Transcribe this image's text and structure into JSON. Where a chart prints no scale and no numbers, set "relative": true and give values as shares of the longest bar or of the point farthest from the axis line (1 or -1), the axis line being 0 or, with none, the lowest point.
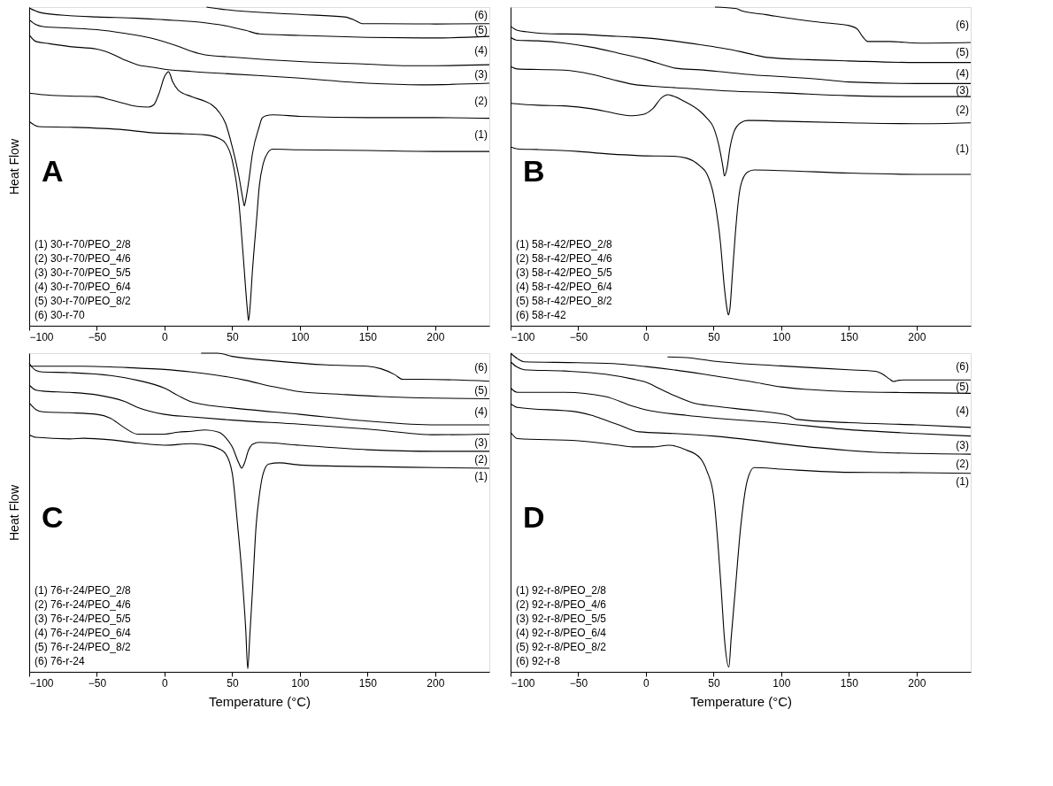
{
  "chart_data": [
    {
      "type": "line",
      "title": "A",
      "ylabel": "Heat Flow",
      "relative": true,
      "tick_labels": "x",
      "legend": false,
      "grid": false,
      "line_style": "solid",
      "marker": "none",
      "xlim": [
        -100,
        240
      ],
      "xticks": [
        -100,
        -50,
        0,
        50,
        100,
        150,
        200
      ],
      "annotations": [
        "(1) 30-r-70/PEO_2/8",
        "(2) 30-r-70/PEO_4/6",
        "(3) 30-r-70/PEO_5/5",
        "(4) 30-r-70/PEO_6/4",
        "(5) 30-r-70/PEO_8/2",
        "(6) 30-r-70"
      ],
      "series": [
        {
          "name": "(6)",
          "color": "#000000",
          "x": [
            31,
            41,
            100,
            133,
            140,
            146,
            160,
            200,
            240
          ],
          "values": [
            1.0,
            0.994,
            0.977,
            0.969,
            0.96,
            0.948,
            0.948,
            0.947,
            0.948
          ]
        },
        {
          "name": "(5)",
          "color": "#000000",
          "x": [
            -100,
            -92,
            -70,
            -50,
            -20,
            0,
            20,
            40,
            50,
            60,
            70,
            100,
            150,
            200,
            240
          ],
          "values": [
            0.997,
            0.983,
            0.973,
            0.969,
            0.965,
            0.96,
            0.955,
            0.945,
            0.937,
            0.927,
            0.916,
            0.911,
            0.905,
            0.903,
            0.908
          ]
        },
        {
          "name": "(4)",
          "color": "#000000",
          "x": [
            -100,
            -95,
            -90,
            -70,
            -50,
            -30,
            -10,
            10,
            20,
            30,
            50,
            100,
            150,
            180,
            200,
            240
          ],
          "values": [
            0.96,
            0.945,
            0.939,
            0.934,
            0.929,
            0.918,
            0.903,
            0.877,
            0.861,
            0.85,
            0.843,
            0.829,
            0.821,
            0.816,
            0.816,
            0.819
          ]
        },
        {
          "name": "(3)",
          "color": "#000000",
          "x": [
            -100,
            -95,
            -85,
            -70,
            -50,
            -40,
            -30,
            -20,
            -10,
            0,
            20,
            50,
            100,
            150,
            190,
            240
          ],
          "values": [
            0.913,
            0.892,
            0.885,
            0.876,
            0.868,
            0.855,
            0.835,
            0.819,
            0.812,
            0.805,
            0.798,
            0.79,
            0.777,
            0.761,
            0.756,
            0.761
          ]
        },
        {
          "name": "(2)",
          "color": "#000000",
          "x": [
            -100,
            -90,
            -70,
            -50,
            -40,
            -30,
            -20,
            -12,
            -8,
            -4,
            0,
            3,
            6,
            10,
            20,
            30,
            35,
            40,
            45,
            50,
            55,
            58,
            59,
            60,
            62,
            65,
            70,
            72,
            75,
            80,
            100,
            150,
            200,
            240
          ],
          "values": [
            0.73,
            0.725,
            0.721,
            0.719,
            0.709,
            0.698,
            0.688,
            0.686,
            0.693,
            0.73,
            0.782,
            0.797,
            0.766,
            0.74,
            0.719,
            0.704,
            0.693,
            0.672,
            0.636,
            0.562,
            0.468,
            0.395,
            0.376,
            0.395,
            0.447,
            0.541,
            0.625,
            0.651,
            0.659,
            0.662,
            0.657,
            0.653,
            0.653,
            0.651
          ]
        },
        {
          "name": "(1)",
          "color": "#000000",
          "x": [
            -100,
            -93,
            -70,
            -30,
            -10,
            10,
            30,
            40,
            45,
            50,
            55,
            58,
            61,
            62,
            63,
            65,
            68,
            70,
            73,
            76,
            80,
            100,
            150,
            200,
            240
          ],
          "values": [
            0.641,
            0.625,
            0.623,
            0.615,
            0.606,
            0.603,
            0.599,
            0.588,
            0.573,
            0.52,
            0.384,
            0.227,
            0.06,
            0.016,
            0.049,
            0.175,
            0.332,
            0.437,
            0.51,
            0.541,
            0.554,
            0.552,
            0.55,
            0.547,
            0.547
          ]
        }
      ]
    },
    {
      "type": "line",
      "title": "B",
      "relative": true,
      "tick_labels": "x",
      "legend": false,
      "grid": false,
      "line_style": "solid",
      "marker": "none",
      "xlim": [
        -100,
        240
      ],
      "xticks": [
        -100,
        -50,
        0,
        50,
        100,
        150,
        200
      ],
      "annotations": [
        "(1) 58-r-42/PEO_2/8",
        "(2) 58-r-42/PEO_4/6",
        "(3) 58-r-42/PEO_5/5",
        "(4) 58-r-42/PEO_6/4",
        "(5) 58-r-42/PEO_8/2",
        "(6) 58-r-42"
      ],
      "series": [
        {
          "name": "(6)",
          "color": "#000000",
          "x": [
            51,
            67,
            71,
            89,
            112,
            134,
            150,
            156,
            160,
            164,
            180,
            202,
            240
          ],
          "values": [
            1.0,
            0.995,
            0.988,
            0.976,
            0.961,
            0.95,
            0.942,
            0.932,
            0.908,
            0.892,
            0.892,
            0.887,
            0.889
          ]
        },
        {
          "name": "(5)",
          "color": "#000000",
          "x": [
            -100,
            -95,
            -85,
            -70,
            -50,
            -30,
            -10,
            0,
            20,
            40,
            55,
            70,
            80,
            90,
            120,
            150,
            200,
            240
          ],
          "values": [
            0.94,
            0.927,
            0.921,
            0.916,
            0.915,
            0.91,
            0.906,
            0.903,
            0.894,
            0.882,
            0.872,
            0.86,
            0.85,
            0.842,
            0.835,
            0.831,
            0.826,
            0.826
          ]
        },
        {
          "name": "(4)",
          "color": "#000000",
          "x": [
            -100,
            -95,
            -80,
            -60,
            -40,
            -20,
            0,
            15,
            22,
            40,
            60,
            80,
            100,
            130,
            150,
            200,
            240
          ],
          "values": [
            0.905,
            0.896,
            0.894,
            0.887,
            0.874,
            0.855,
            0.835,
            0.816,
            0.808,
            0.803,
            0.795,
            0.787,
            0.782,
            0.773,
            0.765,
            0.76,
            0.76
          ]
        },
        {
          "name": "(3)",
          "color": "#000000",
          "x": [
            -100,
            -95,
            -80,
            -60,
            -40,
            -25,
            -10,
            10,
            30,
            60,
            100,
            150,
            200,
            240
          ],
          "values": [
            0.814,
            0.806,
            0.804,
            0.802,
            0.789,
            0.773,
            0.758,
            0.75,
            0.745,
            0.737,
            0.731,
            0.722,
            0.719,
            0.719
          ]
        },
        {
          "name": "(2)",
          "color": "#000000",
          "x": [
            -100,
            -80,
            -60,
            -40,
            -30,
            -20,
            -10,
            -2,
            5,
            12,
            16,
            20,
            28,
            40,
            45,
            50,
            54,
            57,
            58,
            60,
            62,
            65,
            70,
            75,
            80,
            100,
            150,
            200,
            240
          ],
          "values": [
            0.698,
            0.692,
            0.69,
            0.681,
            0.673,
            0.664,
            0.659,
            0.663,
            0.681,
            0.717,
            0.725,
            0.721,
            0.705,
            0.673,
            0.652,
            0.622,
            0.564,
            0.496,
            0.47,
            0.496,
            0.555,
            0.608,
            0.637,
            0.644,
            0.644,
            0.642,
            0.637,
            0.634,
            0.637
          ]
        },
        {
          "name": "(1)",
          "color": "#000000",
          "x": [
            -100,
            -95,
            -80,
            -50,
            -30,
            -10,
            0,
            20,
            30,
            40,
            45,
            50,
            55,
            58,
            60,
            61,
            62,
            64,
            66,
            68,
            70,
            75,
            80,
            100,
            150,
            200,
            240
          ],
          "values": [
            0.561,
            0.555,
            0.553,
            0.547,
            0.54,
            0.535,
            0.533,
            0.532,
            0.526,
            0.501,
            0.477,
            0.41,
            0.264,
            0.119,
            0.051,
            0.034,
            0.051,
            0.167,
            0.284,
            0.38,
            0.439,
            0.482,
            0.489,
            0.487,
            0.479,
            0.475,
            0.475
          ]
        }
      ]
    },
    {
      "type": "line",
      "title": "C",
      "ylabel": "Heat Flow",
      "xlabel": "Temperature (°C)",
      "relative": true,
      "tick_labels": "x",
      "legend": false,
      "grid": false,
      "line_style": "solid",
      "marker": "none",
      "xlim": [
        -100,
        240
      ],
      "xticks": [
        -100,
        -50,
        0,
        50,
        100,
        150,
        200
      ],
      "annotations": [
        "(1) 76-r-24/PEO_2/8",
        "(2) 76-r-24/PEO_4/6",
        "(3) 76-r-24/PEO_5/5",
        "(4) 76-r-24/PEO_6/4",
        "(5) 76-r-24/PEO_8/2",
        "(6) 76-r-24"
      ],
      "series": [
        {
          "name": "(6)",
          "color": "#000000",
          "x": [
            27,
            39,
            50,
            80,
            120,
            150,
            160,
            170,
            176,
            190,
            240
          ],
          "values": [
            1.0,
            1.0,
            0.99,
            0.976,
            0.963,
            0.959,
            0.951,
            0.933,
            0.918,
            0.918,
            0.912
          ]
        },
        {
          "name": "(5)",
          "color": "#000000",
          "x": [
            -100,
            -98,
            -80,
            -60,
            -40,
            -20,
            0,
            20,
            40,
            60,
            80,
            90,
            100,
            130,
            160,
            200,
            240
          ],
          "values": [
            0.969,
            0.959,
            0.959,
            0.959,
            0.957,
            0.953,
            0.949,
            0.941,
            0.93,
            0.915,
            0.895,
            0.887,
            0.879,
            0.871,
            0.864,
            0.859,
            0.857
          ]
        },
        {
          "name": "(4)",
          "color": "#000000",
          "x": [
            -100,
            -95,
            -90,
            -70,
            -40,
            -20,
            0,
            10,
            20,
            30,
            50,
            100,
            150,
            200,
            240
          ],
          "values": [
            0.966,
            0.946,
            0.941,
            0.939,
            0.93,
            0.915,
            0.89,
            0.867,
            0.847,
            0.838,
            0.828,
            0.808,
            0.787,
            0.775,
            0.775
          ]
        },
        {
          "name": "(3)",
          "color": "#000000",
          "x": [
            -100,
            -95,
            -90,
            -70,
            -50,
            -30,
            -20,
            0,
            20,
            50,
            100,
            150,
            200,
            240
          ],
          "values": [
            0.9,
            0.884,
            0.881,
            0.877,
            0.869,
            0.849,
            0.83,
            0.808,
            0.8,
            0.79,
            0.777,
            0.762,
            0.744,
            0.746
          ]
        },
        {
          "name": "(2)",
          "color": "#000000",
          "x": [
            -100,
            -95,
            -90,
            -70,
            -50,
            -40,
            -30,
            -20,
            0,
            10,
            20,
            30,
            40,
            45,
            50,
            55,
            57,
            59,
            62,
            65,
            70,
            100,
            150,
            200,
            240
          ],
          "values": [
            0.844,
            0.823,
            0.816,
            0.813,
            0.808,
            0.796,
            0.767,
            0.746,
            0.746,
            0.752,
            0.755,
            0.759,
            0.752,
            0.736,
            0.706,
            0.654,
            0.639,
            0.654,
            0.695,
            0.714,
            0.72,
            0.711,
            0.697,
            0.692,
            0.692
          ]
        },
        {
          "name": "(1)",
          "color": "#000000",
          "x": [
            -100,
            -95,
            -70,
            -60,
            -40,
            -20,
            0,
            20,
            35,
            40,
            45,
            50,
            54,
            57,
            60,
            61.5,
            63,
            65,
            67.7,
            70,
            73,
            77,
            85,
            100,
            150,
            200,
            240
          ],
          "values": [
            0.744,
            0.736,
            0.731,
            0.733,
            0.728,
            0.718,
            0.711,
            0.716,
            0.708,
            0.7,
            0.685,
            0.624,
            0.46,
            0.317,
            0.133,
            0.01,
            0.112,
            0.256,
            0.46,
            0.552,
            0.624,
            0.652,
            0.656,
            0.649,
            0.644,
            0.641,
            0.639
          ]
        }
      ]
    },
    {
      "type": "line",
      "title": "D",
      "xlabel": "Temperature (°C)",
      "relative": true,
      "tick_labels": "x",
      "legend": false,
      "grid": false,
      "line_style": "solid",
      "marker": "none",
      "xlim": [
        -100,
        240
      ],
      "xticks": [
        -100,
        -50,
        0,
        50,
        100,
        150,
        200
      ],
      "annotations": [
        "(1) 92-r-8/PEO_2/8",
        "(2) 92-r-8/PEO_4/6",
        "(3) 92-r-8/PEO_5/5",
        "(4) 92-r-8/PEO_6/4",
        "(5) 92-r-8/PEO_8/2",
        "(6) 92-r-8"
      ],
      "series": [
        {
          "name": "(6)",
          "color": "#000000",
          "x": [
            16,
            30,
            50,
            100,
            150,
            170,
            175,
            180,
            183,
            185,
            190,
            240
          ],
          "values": [
            0.988,
            0.986,
            0.975,
            0.96,
            0.948,
            0.943,
            0.934,
            0.919,
            0.911,
            0.913,
            0.916,
            0.916
          ]
        },
        {
          "name": "(5)",
          "color": "#000000",
          "x": [
            -100,
            -95,
            -90,
            -50,
            -20,
            0,
            20,
            50,
            80,
            100,
            120,
            150,
            200,
            240
          ],
          "values": [
            1.0,
            0.983,
            0.973,
            0.97,
            0.966,
            0.958,
            0.948,
            0.929,
            0.909,
            0.894,
            0.886,
            0.879,
            0.876,
            0.874
          ]
        },
        {
          "name": "(4)",
          "color": "#000000",
          "x": [
            -100,
            -95,
            -90,
            -60,
            -30,
            -10,
            0,
            10,
            20,
            35,
            50,
            80,
            105,
            112,
            150,
            200,
            240
          ],
          "values": [
            0.973,
            0.956,
            0.948,
            0.944,
            0.934,
            0.919,
            0.909,
            0.889,
            0.869,
            0.844,
            0.834,
            0.82,
            0.805,
            0.792,
            0.782,
            0.775,
            0.767
          ]
        },
        {
          "name": "(3)",
          "color": "#000000",
          "x": [
            -100,
            -95,
            -60,
            -30,
            -10,
            0,
            30,
            100,
            150,
            200,
            240
          ],
          "values": [
            0.891,
            0.877,
            0.877,
            0.864,
            0.834,
            0.822,
            0.805,
            0.78,
            0.76,
            0.748,
            0.74
          ]
        },
        {
          "name": "(2)",
          "color": "#000000",
          "x": [
            -100,
            -95,
            -50,
            -40,
            -30,
            -20,
            -5,
            20,
            50,
            120,
            170,
            240
          ],
          "values": [
            0.841,
            0.83,
            0.815,
            0.805,
            0.79,
            0.775,
            0.753,
            0.748,
            0.74,
            0.706,
            0.689,
            0.683
          ]
        },
        {
          "name": "(1)",
          "color": "#000000",
          "x": [
            -100,
            -95,
            -50,
            -20,
            -10,
            5,
            17,
            30,
            40,
            45,
            50,
            55.7,
            58,
            61.3,
            63,
            66,
            70,
            75,
            80,
            100,
            150,
            200,
            240
          ],
          "values": [
            0.752,
            0.732,
            0.725,
            0.711,
            0.706,
            0.706,
            0.711,
            0.696,
            0.671,
            0.631,
            0.552,
            0.255,
            0.106,
            0.015,
            0.106,
            0.255,
            0.453,
            0.602,
            0.641,
            0.636,
            0.626,
            0.625,
            0.623
          ]
        }
      ]
    }
  ]
}
